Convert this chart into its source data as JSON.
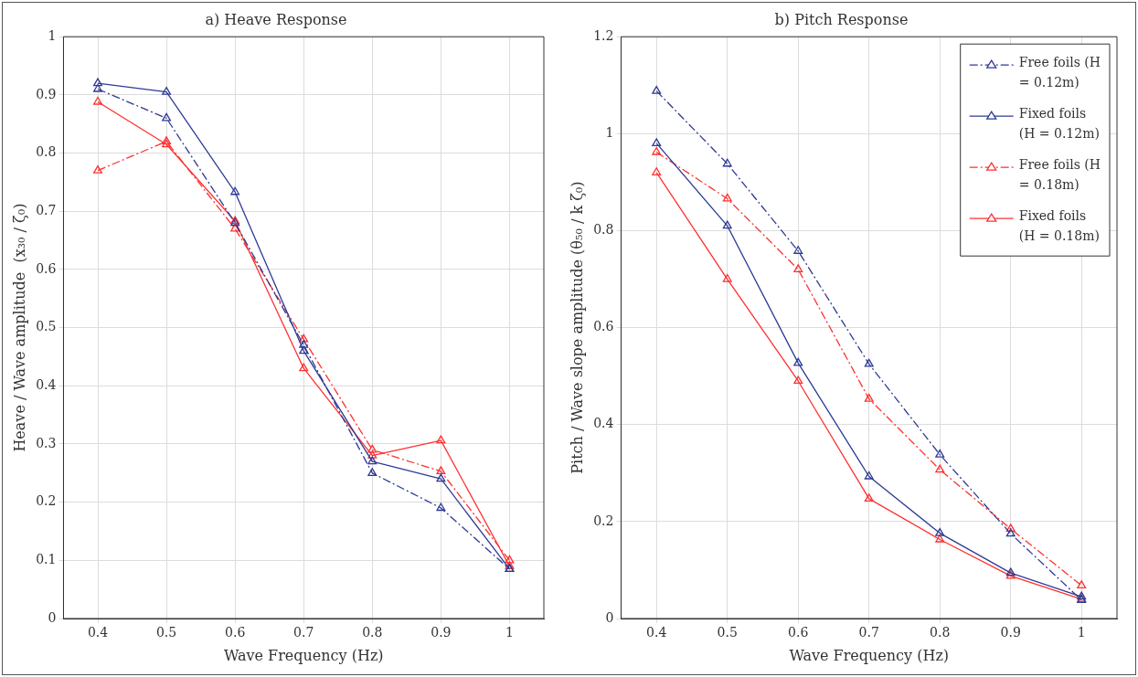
{
  "chart_data": [
    {
      "type": "line",
      "title": "a) Heave Response",
      "xlabel": "Wave Frequency (Hz)",
      "ylabel": "Heave / Wave amplitude  (x₃₀ / ζ₀)",
      "x": [
        0.4,
        0.5,
        0.6,
        0.7,
        0.8,
        0.9,
        1
      ],
      "xlim": [
        0.35,
        1.05
      ],
      "xticks": [
        0.4,
        0.5,
        0.6,
        0.7,
        0.8,
        0.9,
        1
      ],
      "ylim": [
        0,
        1
      ],
      "yticks": [
        0,
        0.1,
        0.2,
        0.3,
        0.4,
        0.5,
        0.6,
        0.7,
        0.8,
        0.9,
        1
      ],
      "grid": true,
      "legend": false,
      "marker": "triangle",
      "series": [
        {
          "color": "#2e3a94",
          "line_style": "dashed",
          "values": [
            0.91,
            0.86,
            0.68,
            0.47,
            0.25,
            0.19,
            0.085
          ]
        },
        {
          "color": "#2e3a94",
          "line_style": "solid",
          "values": [
            0.92,
            0.905,
            0.733,
            0.46,
            0.27,
            0.24,
            0.085
          ]
        },
        {
          "color": "#ff3030",
          "line_style": "dashed",
          "values": [
            0.77,
            0.82,
            0.67,
            0.48,
            0.29,
            0.253,
            0.1
          ]
        },
        {
          "color": "#ff3030",
          "line_style": "solid",
          "values": [
            0.888,
            0.815,
            0.683,
            0.43,
            0.28,
            0.306,
            0.09
          ]
        }
      ]
    },
    {
      "type": "line",
      "title": "b) Pitch Response",
      "xlabel": "Wave Frequency (Hz)",
      "ylabel": "Pitch / Wave slope amplitude (θ₅₀ / k ζ₀)",
      "x": [
        0.4,
        0.5,
        0.6,
        0.7,
        0.8,
        0.9,
        1
      ],
      "xlim": [
        0.35,
        1.05
      ],
      "xticks": [
        0.4,
        0.5,
        0.6,
        0.7,
        0.8,
        0.9,
        1
      ],
      "ylim": [
        0,
        1.2
      ],
      "yticks": [
        0,
        0.2,
        0.4,
        0.6,
        0.8,
        1,
        1.2
      ],
      "grid": true,
      "legend": "top right",
      "marker": "triangle",
      "series": [
        {
          "name": "Free foils (H = 0.12m)",
          "color": "#2e3a94",
          "line_style": "dashed",
          "values": [
            1.088,
            0.938,
            0.758,
            0.525,
            0.338,
            0.175,
            0.038
          ]
        },
        {
          "name": "Fixed foils (H = 0.12m)",
          "color": "#2e3a94",
          "line_style": "solid",
          "values": [
            0.98,
            0.81,
            0.527,
            0.293,
            0.176,
            0.094,
            0.045
          ]
        },
        {
          "name": "Free foils (H = 0.18m)",
          "color": "#ff3030",
          "line_style": "dashed",
          "values": [
            0.962,
            0.866,
            0.72,
            0.453,
            0.307,
            0.185,
            0.068
          ]
        },
        {
          "name": "Fixed foils (H = 0.18m)",
          "color": "#ff3030",
          "line_style": "solid",
          "values": [
            0.92,
            0.7,
            0.49,
            0.247,
            0.163,
            0.088,
            0.04
          ]
        }
      ]
    }
  ]
}
